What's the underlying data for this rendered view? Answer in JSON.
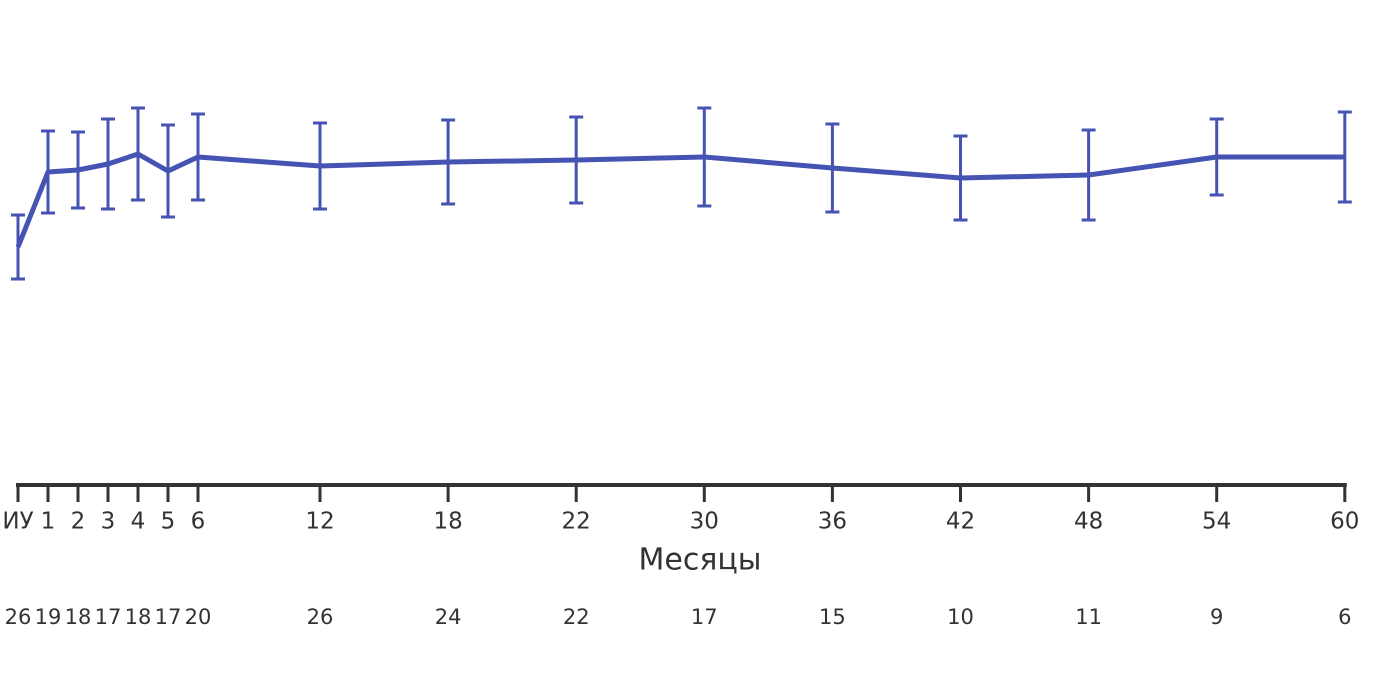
{
  "chart_data": {
    "type": "line",
    "x_label": "Месяцы",
    "categories": [
      "ИУ",
      "1",
      "2",
      "3",
      "4",
      "5",
      "6",
      "12",
      "18",
      "22",
      "30",
      "36",
      "42",
      "48",
      "54",
      "60"
    ],
    "series": [
      {
        "color": "#4553b3",
        "values": [
          238,
          313,
          315,
          321,
          331,
          314,
          328,
          319,
          323,
          325,
          328,
          317,
          307,
          310,
          328,
          328
        ],
        "errors": [
          32,
          41,
          38,
          45,
          46,
          46,
          43,
          43,
          42,
          43,
          49,
          44,
          42,
          45,
          38,
          45
        ]
      }
    ],
    "counts": [
      26,
      19,
      18,
      17,
      18,
      17,
      20,
      26,
      24,
      22,
      17,
      15,
      10,
      11,
      9,
      6
    ],
    "ylim": [
      0,
      485
    ]
  }
}
